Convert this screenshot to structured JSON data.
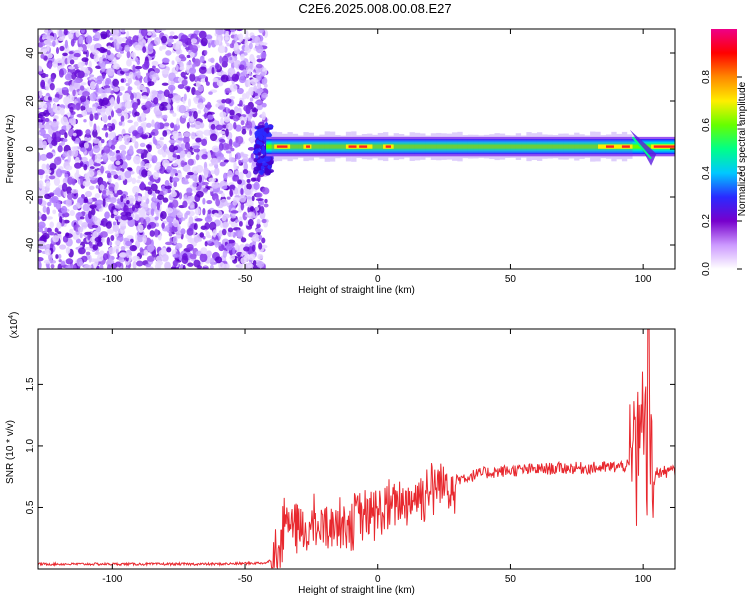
{
  "title": "C2E6.2025.008.00.08.E27",
  "chart_data": [
    {
      "type": "heatmap",
      "xlabel": "Height of straight line (km)",
      "ylabel": "Frequency (Hz)",
      "xlim": [
        -128,
        112
      ],
      "ylim": [
        -50,
        50
      ],
      "x_ticks": [
        -100,
        -50,
        0,
        50,
        100
      ],
      "y_ticks": [
        -40,
        -20,
        0,
        20,
        40
      ],
      "colorbar": {
        "label": "Normalized spectral amplitude",
        "range": [
          0.0,
          1.0
        ],
        "ticks": [
          0.0,
          0.2,
          0.4,
          0.6,
          0.8
        ],
        "tick_labels": [
          "0.0",
          "0.2",
          "0.4",
          "0.6",
          "0.8"
        ],
        "colormap": [
          "#ffffff",
          "#cc99ff",
          "#7700cc",
          "#2a2aff",
          "#00c8ff",
          "#00ff88",
          "#66ff00",
          "#ffee00",
          "#ff8800",
          "#ff0000",
          "#ee0088"
        ]
      },
      "features": {
        "noise_region_x": [
          -128,
          -42
        ],
        "band_x": [
          -42,
          112
        ],
        "band_center_freq": 1,
        "band_half_width_hz": 3,
        "disturbance_x": [
          95,
          103
        ]
      }
    },
    {
      "type": "line",
      "xlabel": "Height of straight line (km)",
      "ylabel": "SNR (10 * v/v)",
      "y_scale_note": "(x10^4)",
      "xlim": [
        -128,
        112
      ],
      "ylim": [
        0,
        1.95
      ],
      "x_ticks": [
        -100,
        -50,
        0,
        50,
        100
      ],
      "y_ticks": [
        0.5,
        1.0,
        1.5
      ],
      "y_tick_labels": [
        "0.5",
        "1.0",
        "1.5"
      ],
      "line_color": "#e8282e",
      "series": [
        {
          "x": [
            -128,
            -100,
            -60,
            -42,
            -38,
            -36,
            -35,
            -30,
            -20,
            -10,
            0,
            10,
            20,
            30,
            40,
            50,
            60,
            70,
            80,
            90,
            95,
            98,
            100,
            102,
            105,
            112
          ],
          "values": [
            0.04,
            0.04,
            0.04,
            0.05,
            0.1,
            0.25,
            0.45,
            0.3,
            0.35,
            0.4,
            0.45,
            0.55,
            0.65,
            0.73,
            0.78,
            0.8,
            0.81,
            0.82,
            0.82,
            0.83,
            0.84,
            0.75,
            1.4,
            0.6,
            0.78,
            0.8
          ]
        }
      ]
    }
  ]
}
